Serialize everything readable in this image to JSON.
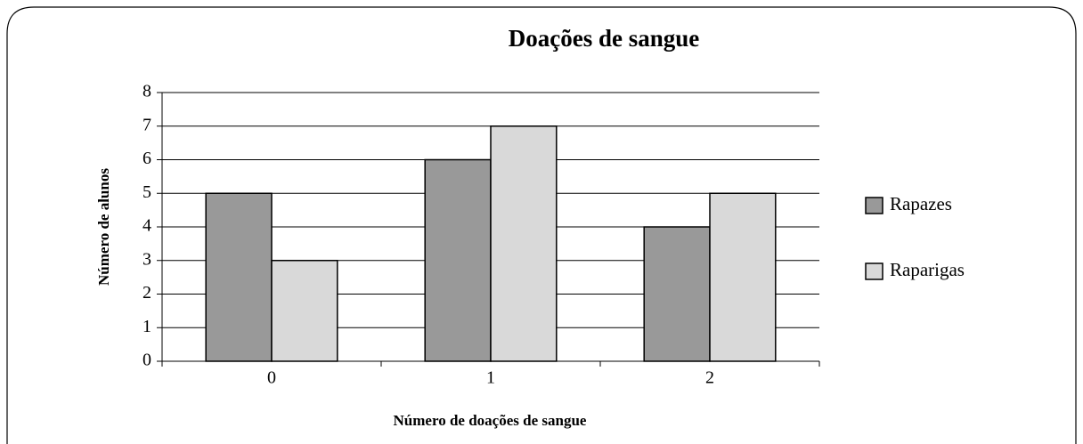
{
  "chart_data": {
    "type": "bar",
    "title": "Doações de sangue",
    "x_label": "Número de doações de sangue",
    "y_label": "Número de alunos",
    "categories": [
      "0",
      "1",
      "2"
    ],
    "series": [
      {
        "name": "Rapazes",
        "color": "#999999",
        "values": [
          5,
          6,
          4
        ]
      },
      {
        "name": "Raparigas",
        "color": "#d9d9d9",
        "values": [
          3,
          7,
          5
        ]
      }
    ],
    "ylim": [
      0,
      8
    ],
    "yticks": [
      0,
      1,
      2,
      3,
      4,
      5,
      6,
      7,
      8
    ],
    "grid": true,
    "legend": "right"
  }
}
